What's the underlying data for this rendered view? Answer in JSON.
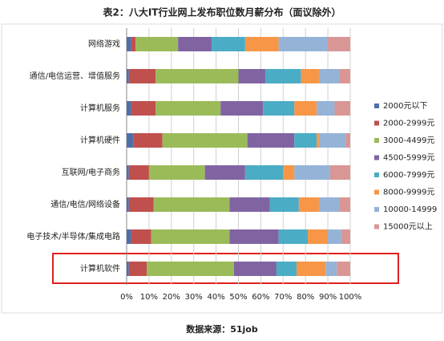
{
  "chart_data": {
    "type": "stacked-bar-horizontal",
    "title": "表2：八大IT行业网上发布职位数月薪分布（面议除外）",
    "source": "数据来源：51job",
    "categories": [
      "网络游戏",
      "通信/电信运营、增值服务",
      "计算机服务",
      "计算机硬件",
      "互联网/电子商务",
      "通信/电信/网络设备",
      "电子技术/半导体/集成电路",
      "计算机软件"
    ],
    "series": [
      {
        "name": "2000元以下",
        "color": "#4f6fa8",
        "values": [
          2,
          1,
          2,
          3,
          1,
          1,
          2,
          1
        ]
      },
      {
        "name": "2000-2999元",
        "color": "#c0504d",
        "values": [
          2,
          12,
          11,
          13,
          9,
          11,
          9,
          8
        ]
      },
      {
        "name": "3000-4499元",
        "color": "#9bbb59",
        "values": [
          19,
          37,
          29,
          38,
          25,
          34,
          35,
          39
        ]
      },
      {
        "name": "4500-5999元",
        "color": "#8064a2",
        "values": [
          15,
          12,
          19,
          21,
          18,
          18,
          22,
          19
        ]
      },
      {
        "name": "6000-7999元",
        "color": "#4bacc6",
        "values": [
          15,
          16,
          14,
          10,
          17,
          13,
          13,
          9
        ]
      },
      {
        "name": "8000-9999元",
        "color": "#f79646",
        "values": [
          15,
          8,
          10,
          1,
          5,
          9,
          9,
          13
        ]
      },
      {
        "name": "10000-14999",
        "color": "#95b3d7",
        "values": [
          22,
          9,
          8,
          12,
          16,
          9,
          6,
          5
        ]
      },
      {
        "name": "15000元以上",
        "color": "#d99694",
        "values": [
          10,
          5,
          7,
          2,
          9,
          5,
          4,
          6
        ]
      }
    ],
    "xlim": [
      0,
      100
    ],
    "xticks": [
      {
        "value": 0,
        "label": "0%"
      },
      {
        "value": 10,
        "label": "10%"
      },
      {
        "value": 20,
        "label": "20%"
      },
      {
        "value": 30,
        "label": "30%"
      },
      {
        "value": 40,
        "label": "40%"
      },
      {
        "value": 50,
        "label": "50%"
      },
      {
        "value": 60,
        "label": "60%"
      },
      {
        "value": 70,
        "label": "70%"
      },
      {
        "value": 80,
        "label": "80%"
      },
      {
        "value": 90,
        "label": "90%"
      },
      {
        "value": 100,
        "label": "100%"
      }
    ],
    "grid": true
  }
}
